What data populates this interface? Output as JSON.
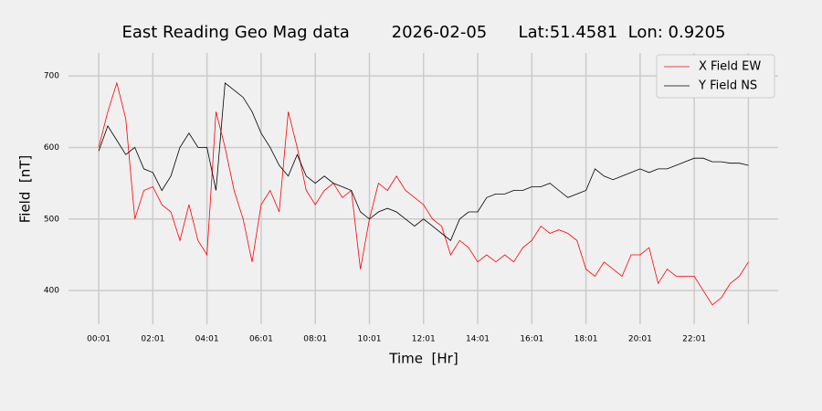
{
  "chart_data": {
    "type": "line",
    "title": "East Reading Geo Mag data        2026-02-05      Lat:51.4581  Lon: 0.9205",
    "x_label": "Time  [Hr]",
    "y_label": "Field  [nT]",
    "x": [
      1,
      21,
      41,
      61,
      81,
      101,
      121,
      141,
      161,
      181,
      201,
      221,
      241,
      261,
      281,
      301,
      321,
      341,
      361,
      381,
      401,
      421,
      441,
      461,
      481,
      501,
      521,
      541,
      561,
      581,
      601,
      621,
      641,
      661,
      681,
      701,
      721,
      741,
      761,
      781,
      801,
      821,
      841,
      861,
      881,
      901,
      921,
      941,
      961,
      981,
      1001,
      1021,
      1041,
      1061,
      1081,
      1101,
      1121,
      1141,
      1161,
      1181,
      1201,
      1221,
      1241,
      1261,
      1281,
      1301,
      1321,
      1341,
      1361,
      1381,
      1401,
      1421,
      1441
    ],
    "series": [
      {
        "name": "X Field EW",
        "color": "#ff0000",
        "values": [
          600,
          650,
          690,
          640,
          500,
          540,
          545,
          520,
          510,
          470,
          520,
          470,
          450,
          650,
          600,
          540,
          500,
          440,
          520,
          540,
          510,
          650,
          600,
          540,
          520,
          540,
          550,
          530,
          540,
          430,
          500,
          550,
          540,
          560,
          540,
          530,
          520,
          500,
          490,
          450,
          470,
          460,
          440,
          450,
          440,
          450,
          440,
          460,
          470,
          490,
          480,
          485,
          480,
          470,
          430,
          420,
          440,
          430,
          420,
          450,
          450,
          460,
          410,
          430,
          420,
          420,
          420,
          400,
          380,
          390,
          410,
          420,
          440
        ]
      },
      {
        "name": "Y Field NS",
        "color": "#000000",
        "values": [
          595,
          630,
          610,
          590,
          600,
          570,
          565,
          540,
          560,
          600,
          620,
          600,
          600,
          540,
          690,
          680,
          670,
          650,
          620,
          600,
          575,
          560,
          590,
          560,
          550,
          560,
          550,
          545,
          540,
          510,
          500,
          510,
          515,
          510,
          500,
          490,
          500,
          490,
          480,
          470,
          500,
          510,
          510,
          530,
          535,
          535,
          540,
          540,
          545,
          545,
          550,
          540,
          530,
          535,
          540,
          570,
          560,
          555,
          560,
          565,
          570,
          565,
          570,
          570,
          575,
          580,
          585,
          585,
          580,
          580,
          578,
          578,
          575
        ]
      }
    ],
    "xlim": [
      -66,
      1507
    ],
    "ylim": [
      353,
      732
    ],
    "xticks": [
      {
        "value": 1,
        "label": "00:01"
      },
      {
        "value": 121,
        "label": "02:01"
      },
      {
        "value": 241,
        "label": "04:01"
      },
      {
        "value": 361,
        "label": "06:01"
      },
      {
        "value": 481,
        "label": "08:01"
      },
      {
        "value": 601,
        "label": "10:01"
      },
      {
        "value": 721,
        "label": "12:01"
      },
      {
        "value": 841,
        "label": "14:01"
      },
      {
        "value": 961,
        "label": "16:01"
      },
      {
        "value": 1081,
        "label": "18:01"
      },
      {
        "value": 1201,
        "label": "20:01"
      },
      {
        "value": 1321,
        "label": "22:01"
      },
      {
        "value": 1441,
        "label": null
      }
    ],
    "yticks": [
      400,
      500,
      600,
      700
    ],
    "grid": true,
    "legend": "upper right"
  }
}
